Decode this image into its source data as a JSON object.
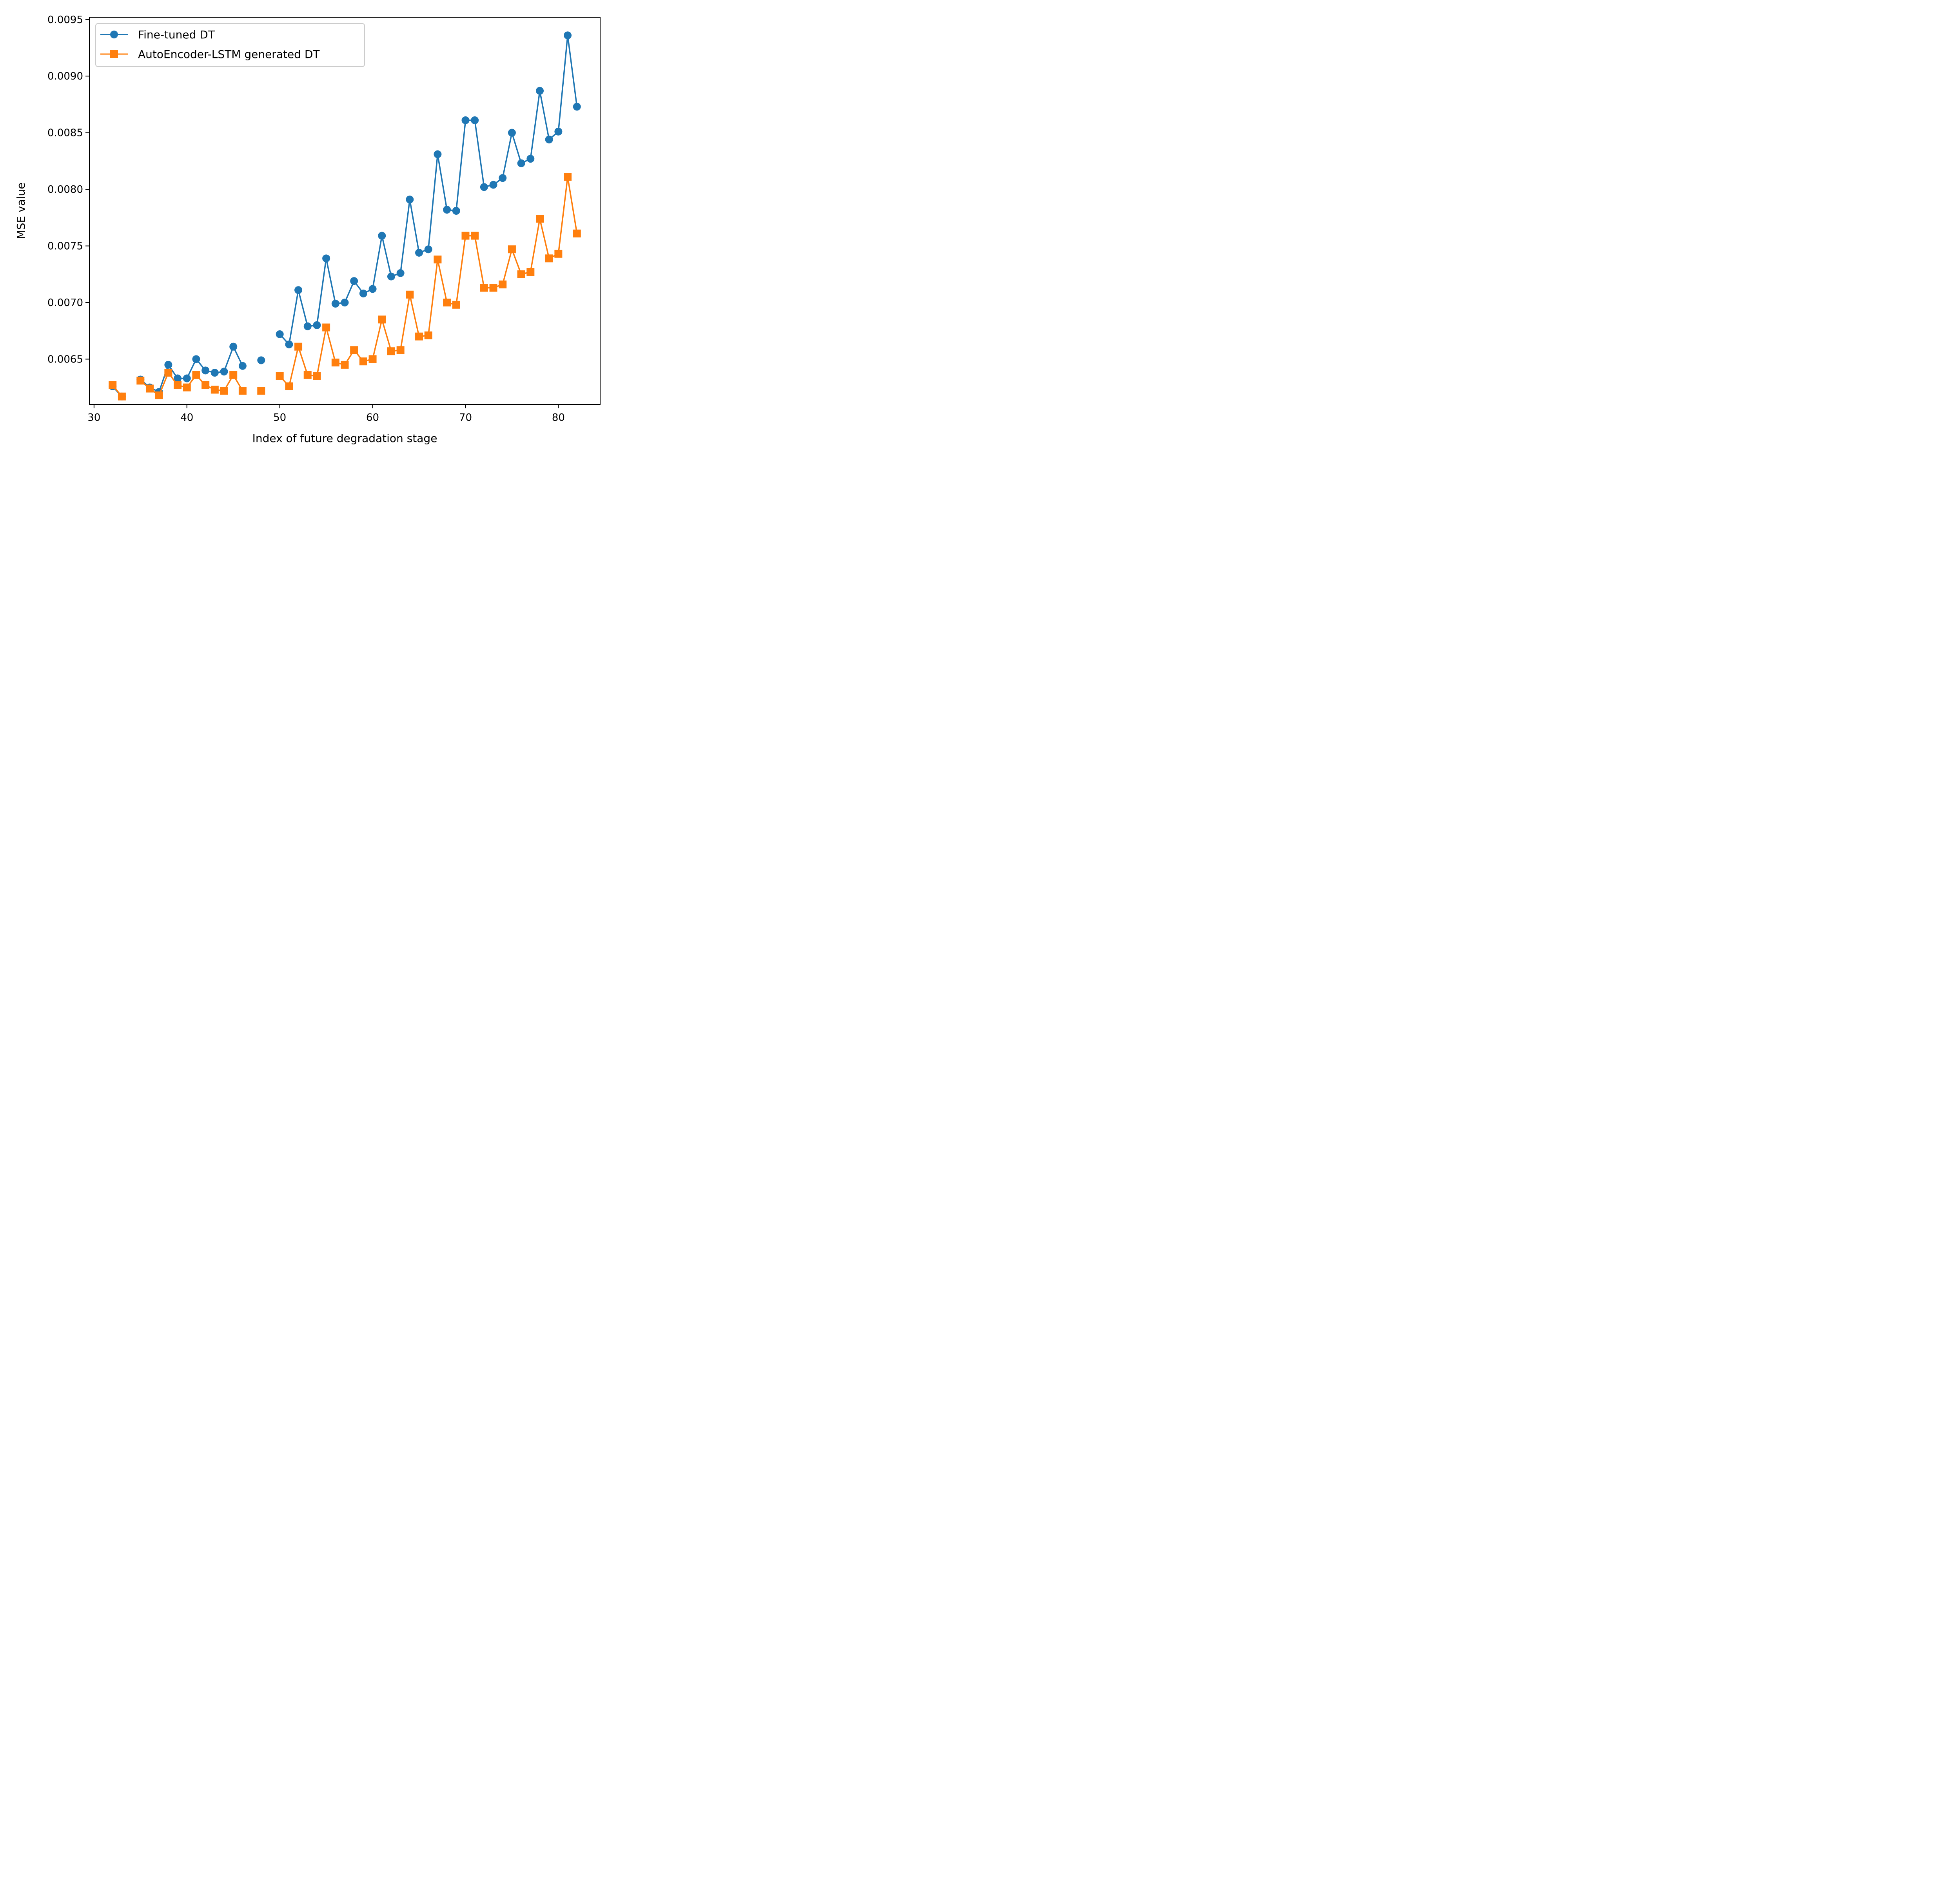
{
  "chart_data": {
    "type": "line",
    "title": "",
    "xlabel": "Index of future degradation stage",
    "ylabel": "MSE value",
    "xlim": [
      29.5,
      84.5
    ],
    "ylim": [
      0.0061,
      0.00952
    ],
    "xticks": [
      30,
      40,
      50,
      60,
      70,
      80
    ],
    "xtick_labels": [
      "30",
      "40",
      "50",
      "60",
      "70",
      "80"
    ],
    "yticks": [
      0.0065,
      0.007,
      0.0075,
      0.008,
      0.0085,
      0.009,
      0.0095
    ],
    "ytick_labels": [
      "0.0065",
      "0.0070",
      "0.0075",
      "0.0080",
      "0.0085",
      "0.0090",
      "0.0095"
    ],
    "grid": false,
    "legend_position": "top-left",
    "series": [
      {
        "name": "Fine-tuned DT",
        "color": "#1f77b4",
        "marker": "circle",
        "x": [
          32,
          33,
          null,
          35,
          36,
          37,
          38,
          39,
          40,
          41,
          42,
          43,
          44,
          45,
          46,
          null,
          48,
          null,
          50,
          51,
          52,
          53,
          54,
          55,
          56,
          57,
          58,
          59,
          60,
          61,
          62,
          63,
          64,
          65,
          66,
          67,
          68,
          69,
          70,
          71,
          72,
          73,
          74,
          75,
          76,
          77,
          78,
          79,
          80,
          81,
          82
        ],
        "y": [
          0.00626,
          0.00617,
          null,
          0.00632,
          0.00625,
          0.00621,
          0.00645,
          0.00633,
          0.00633,
          0.0065,
          0.0064,
          0.00638,
          0.00639,
          0.00661,
          0.00644,
          null,
          0.00649,
          null,
          0.00672,
          0.00663,
          0.00711,
          0.00679,
          0.0068,
          0.00739,
          0.00699,
          0.007,
          0.00719,
          0.00708,
          0.00712,
          0.00759,
          0.00723,
          0.00726,
          0.00791,
          0.00744,
          0.00747,
          0.00831,
          0.00782,
          0.00781,
          0.00861,
          0.00861,
          0.00802,
          0.00804,
          0.0081,
          0.0085,
          0.00823,
          0.00827,
          0.00887,
          0.00844,
          0.00851,
          0.00936,
          0.00873
        ]
      },
      {
        "name": "AutoEncoder-LSTM generated DT",
        "color": "#ff7f0e",
        "marker": "square",
        "x": [
          32,
          33,
          null,
          35,
          36,
          37,
          38,
          39,
          40,
          41,
          42,
          43,
          44,
          45,
          46,
          null,
          48,
          null,
          50,
          51,
          52,
          53,
          54,
          55,
          56,
          57,
          58,
          59,
          60,
          61,
          62,
          63,
          64,
          65,
          66,
          67,
          68,
          69,
          70,
          71,
          72,
          73,
          74,
          75,
          76,
          77,
          78,
          79,
          80,
          81,
          82
        ],
        "y": [
          0.00627,
          0.00617,
          null,
          0.00631,
          0.00624,
          0.00618,
          0.00638,
          0.00627,
          0.00625,
          0.00636,
          0.00627,
          0.00623,
          0.00622,
          0.00636,
          0.00622,
          null,
          0.00622,
          null,
          0.00635,
          0.00626,
          0.00661,
          0.00636,
          0.00635,
          0.00678,
          0.00647,
          0.00645,
          0.00658,
          0.00648,
          0.0065,
          0.00685,
          0.00657,
          0.00658,
          0.00707,
          0.0067,
          0.00671,
          0.00738,
          0.007,
          0.00698,
          0.00759,
          0.00759,
          0.00713,
          0.00713,
          0.00716,
          0.00747,
          0.00725,
          0.00727,
          0.00774,
          0.00739,
          0.00743,
          0.00811,
          0.00761
        ]
      }
    ]
  }
}
